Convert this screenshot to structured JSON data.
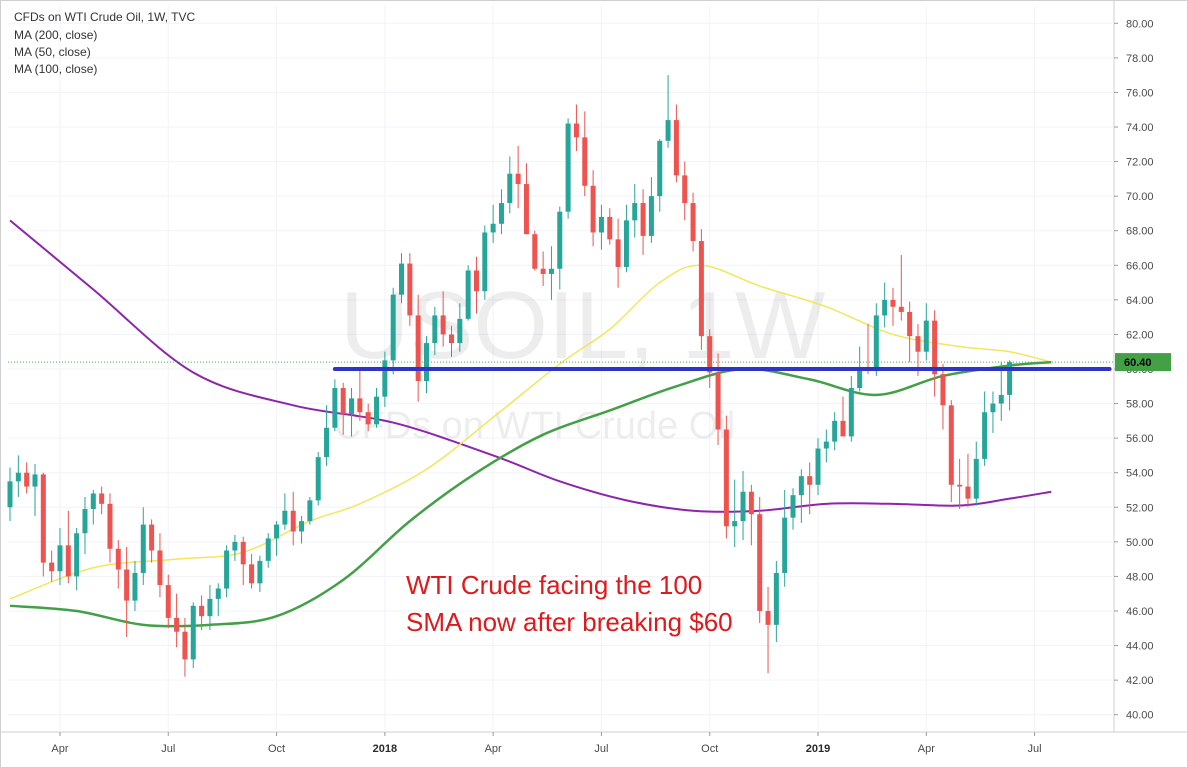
{
  "legend": {
    "symbol": "CFDs on WTI Crude Oil, 1W, TVC",
    "ma_200": "MA (200, close)",
    "ma_50": "MA (50, close)",
    "ma_100": "MA (100, close)"
  },
  "watermark": {
    "ticker": "USOIL, 1W",
    "description": "CFDs on WTI Crude Oil"
  },
  "annotation": {
    "line1": "WTI Crude facing the 100",
    "line2": "SMA now after breaking $60"
  },
  "price_tag": "60.40",
  "colors": {
    "up": "#26a69a",
    "down": "#ef5350",
    "ma_200": "#8e24aa",
    "ma_50": "#f3e65a",
    "ma_100": "#43a047",
    "level_line": "#2e35c6",
    "annotation": "#e0191c"
  },
  "chart_data": {
    "type": "candlestick",
    "title": "CFDs on WTI Crude Oil, 1W, TVC",
    "interval": "1W",
    "ylim": [
      39,
      81
    ],
    "y_ticks": [
      "40.00",
      "42.00",
      "44.00",
      "46.00",
      "48.00",
      "50.00",
      "52.00",
      "54.00",
      "56.00",
      "58.00",
      "60.00",
      "62.00",
      "64.00",
      "66.00",
      "68.00",
      "70.00",
      "72.00",
      "74.00",
      "76.00",
      "78.00",
      "80.00"
    ],
    "x_tick_labels": [
      {
        "label": "Apr",
        "week": 6,
        "bold": false
      },
      {
        "label": "Jul",
        "week": 19,
        "bold": false
      },
      {
        "label": "Oct",
        "week": 32,
        "bold": false
      },
      {
        "label": "2018",
        "week": 45,
        "bold": true
      },
      {
        "label": "Apr",
        "week": 58,
        "bold": false
      },
      {
        "label": "Jul",
        "week": 71,
        "bold": false
      },
      {
        "label": "Oct",
        "week": 84,
        "bold": false
      },
      {
        "label": "2019",
        "week": 97,
        "bold": true
      },
      {
        "label": "Apr",
        "week": 110,
        "bold": false
      },
      {
        "label": "Jul",
        "week": 123,
        "bold": false
      }
    ],
    "candles": [
      [
        52.0,
        54.3,
        51.2,
        53.5
      ],
      [
        53.5,
        55.0,
        52.6,
        54.0
      ],
      [
        54.0,
        54.6,
        52.8,
        53.2
      ],
      [
        53.2,
        54.5,
        51.5,
        53.9
      ],
      [
        53.9,
        54.0,
        48.0,
        48.8
      ],
      [
        48.8,
        49.5,
        47.7,
        48.3
      ],
      [
        48.3,
        50.8,
        47.5,
        49.8
      ],
      [
        49.8,
        51.8,
        47.6,
        48.0
      ],
      [
        48.0,
        50.8,
        47.2,
        50.5
      ],
      [
        50.5,
        52.6,
        49.3,
        51.9
      ],
      [
        51.9,
        53.0,
        51.0,
        52.8
      ],
      [
        52.8,
        53.2,
        51.6,
        52.2
      ],
      [
        52.2,
        52.8,
        48.8,
        49.6
      ],
      [
        49.6,
        50.1,
        47.3,
        48.4
      ],
      [
        48.4,
        49.7,
        44.5,
        46.6
      ],
      [
        46.6,
        48.9,
        46.0,
        48.2
      ],
      [
        48.2,
        52.0,
        47.5,
        51.0
      ],
      [
        51.0,
        51.3,
        48.8,
        49.5
      ],
      [
        49.5,
        50.5,
        46.8,
        47.5
      ],
      [
        47.5,
        48.1,
        45.0,
        45.6
      ],
      [
        45.6,
        47.0,
        43.9,
        44.8
      ],
      [
        44.8,
        45.6,
        42.2,
        43.2
      ],
      [
        43.2,
        46.5,
        42.7,
        46.3
      ],
      [
        46.3,
        46.9,
        44.9,
        45.7
      ],
      [
        45.7,
        47.5,
        44.9,
        46.7
      ],
      [
        46.7,
        47.6,
        45.7,
        47.3
      ],
      [
        47.3,
        49.8,
        46.8,
        49.5
      ],
      [
        49.5,
        50.4,
        48.9,
        50.0
      ],
      [
        50.0,
        50.3,
        47.5,
        48.7
      ],
      [
        48.7,
        49.3,
        47.3,
        47.6
      ],
      [
        47.6,
        49.2,
        47.1,
        48.9
      ],
      [
        48.9,
        50.5,
        48.5,
        50.2
      ],
      [
        50.2,
        51.2,
        49.2,
        51.0
      ],
      [
        51.0,
        52.8,
        50.7,
        51.8
      ],
      [
        51.8,
        52.9,
        49.8,
        50.6
      ],
      [
        50.6,
        51.5,
        49.9,
        51.2
      ],
      [
        51.2,
        52.6,
        51.0,
        52.4
      ],
      [
        52.4,
        55.2,
        52.1,
        54.9
      ],
      [
        54.9,
        57.9,
        54.4,
        56.6
      ],
      [
        56.6,
        59.4,
        56.4,
        58.9
      ],
      [
        58.9,
        59.2,
        56.2,
        57.4
      ],
      [
        57.4,
        58.9,
        56.1,
        58.3
      ],
      [
        58.3,
        59.9,
        57.0,
        57.5
      ],
      [
        57.5,
        58.0,
        56.4,
        56.8
      ],
      [
        56.8,
        58.9,
        56.6,
        58.4
      ],
      [
        58.4,
        61.0,
        57.8,
        60.5
      ],
      [
        60.5,
        64.7,
        59.7,
        64.3
      ],
      [
        64.3,
        66.7,
        63.8,
        66.1
      ],
      [
        66.1,
        66.7,
        62.5,
        63.1
      ],
      [
        63.1,
        64.3,
        58.1,
        59.3
      ],
      [
        59.3,
        61.9,
        58.6,
        61.5
      ],
      [
        61.5,
        63.6,
        60.8,
        63.1
      ],
      [
        63.1,
        64.5,
        61.3,
        62.0
      ],
      [
        62.0,
        62.5,
        60.7,
        61.5
      ],
      [
        61.5,
        63.8,
        61.0,
        62.9
      ],
      [
        62.9,
        66.0,
        62.8,
        65.7
      ],
      [
        65.7,
        66.5,
        63.2,
        64.5
      ],
      [
        64.5,
        68.3,
        64.0,
        67.9
      ],
      [
        67.9,
        69.5,
        67.3,
        68.4
      ],
      [
        68.4,
        70.4,
        67.8,
        69.6
      ],
      [
        69.6,
        72.3,
        69.0,
        71.3
      ],
      [
        71.3,
        72.9,
        69.3,
        70.7
      ],
      [
        70.7,
        71.9,
        67.8,
        67.8
      ],
      [
        67.8,
        68.0,
        65.7,
        65.8
      ],
      [
        65.8,
        66.8,
        64.8,
        65.5
      ],
      [
        65.5,
        67.1,
        64.0,
        65.8
      ],
      [
        65.8,
        69.4,
        64.6,
        69.1
      ],
      [
        69.1,
        74.5,
        68.7,
        74.2
      ],
      [
        74.2,
        75.3,
        72.6,
        73.4
      ],
      [
        73.4,
        74.9,
        70.0,
        70.6
      ],
      [
        70.6,
        71.5,
        67.1,
        67.9
      ],
      [
        67.9,
        69.5,
        66.9,
        68.8
      ],
      [
        68.8,
        69.3,
        67.2,
        67.5
      ],
      [
        67.5,
        68.7,
        64.7,
        65.9
      ],
      [
        65.9,
        69.5,
        65.6,
        68.6
      ],
      [
        68.6,
        70.7,
        67.6,
        69.6
      ],
      [
        69.6,
        70.4,
        66.6,
        67.7
      ],
      [
        67.7,
        71.1,
        67.3,
        70.0
      ],
      [
        70.0,
        73.3,
        69.1,
        73.2
      ],
      [
        73.2,
        77.0,
        72.8,
        74.4
      ],
      [
        74.4,
        75.3,
        70.8,
        71.2
      ],
      [
        71.2,
        72.0,
        68.6,
        69.6
      ],
      [
        69.6,
        70.2,
        66.8,
        67.4
      ],
      [
        67.4,
        68.1,
        61.1,
        61.9
      ],
      [
        61.9,
        62.3,
        58.9,
        59.8
      ],
      [
        59.8,
        60.9,
        55.6,
        56.5
      ],
      [
        56.5,
        57.3,
        50.2,
        50.9
      ],
      [
        50.9,
        53.6,
        49.7,
        51.2
      ],
      [
        51.2,
        54.1,
        50.1,
        52.9
      ],
      [
        52.9,
        53.3,
        49.8,
        51.6
      ],
      [
        51.6,
        52.6,
        45.3,
        46.0
      ],
      [
        46.0,
        47.4,
        42.4,
        45.2
      ],
      [
        45.2,
        48.9,
        44.2,
        48.2
      ],
      [
        48.2,
        53.0,
        47.4,
        51.4
      ],
      [
        51.4,
        53.1,
        50.7,
        52.7
      ],
      [
        52.7,
        54.2,
        51.1,
        53.8
      ],
      [
        53.8,
        54.6,
        51.6,
        53.3
      ],
      [
        53.3,
        56.0,
        52.7,
        55.4
      ],
      [
        55.4,
        56.5,
        54.6,
        55.8
      ],
      [
        55.8,
        57.5,
        55.3,
        57.0
      ],
      [
        57.0,
        58.4,
        56.1,
        56.1
      ],
      [
        56.1,
        59.6,
        55.8,
        58.9
      ],
      [
        58.9,
        61.3,
        58.7,
        60.1
      ],
      [
        60.1,
        62.6,
        59.7,
        60.0
      ],
      [
        60.0,
        63.8,
        59.6,
        63.1
      ],
      [
        63.1,
        65.0,
        62.4,
        64.0
      ],
      [
        64.0,
        64.7,
        62.5,
        63.6
      ],
      [
        63.6,
        66.6,
        62.8,
        63.3
      ],
      [
        63.3,
        63.9,
        60.4,
        61.9
      ],
      [
        61.9,
        62.6,
        59.6,
        61.0
      ],
      [
        61.0,
        63.8,
        60.5,
        62.8
      ],
      [
        62.8,
        63.4,
        58.4,
        59.7
      ],
      [
        59.7,
        60.3,
        56.5,
        57.9
      ],
      [
        57.9,
        58.2,
        52.3,
        53.3
      ],
      [
        53.3,
        54.8,
        51.9,
        53.2
      ],
      [
        53.2,
        55.1,
        52.0,
        52.5
      ],
      [
        52.5,
        55.8,
        52.1,
        54.8
      ],
      [
        54.8,
        58.7,
        54.4,
        57.5
      ],
      [
        57.5,
        58.7,
        56.3,
        58.0
      ],
      [
        58.0,
        60.4,
        57.0,
        58.5
      ],
      [
        58.5,
        60.5,
        57.6,
        60.4
      ]
    ],
    "series": [
      {
        "name": "MA (200, close)",
        "color": "#8e24aa",
        "points": [
          [
            0,
            68.6
          ],
          [
            10,
            64.6
          ],
          [
            22,
            59.8
          ],
          [
            34,
            57.9
          ],
          [
            46,
            56.9
          ],
          [
            58,
            55.0
          ],
          [
            66,
            53.5
          ],
          [
            74,
            52.4
          ],
          [
            82,
            51.8
          ],
          [
            90,
            51.8
          ],
          [
            98,
            52.2
          ],
          [
            106,
            52.2
          ],
          [
            114,
            52.1
          ],
          [
            120,
            52.5
          ],
          [
            125,
            52.9
          ]
        ]
      },
      {
        "name": "MA (50, close)",
        "color": "#f3e65a",
        "points": [
          [
            0,
            46.7
          ],
          [
            10,
            48.5
          ],
          [
            20,
            49.0
          ],
          [
            28,
            49.4
          ],
          [
            36,
            51.2
          ],
          [
            42,
            52.2
          ],
          [
            50,
            54.2
          ],
          [
            58,
            57.2
          ],
          [
            66,
            60.3
          ],
          [
            72,
            62.3
          ],
          [
            78,
            65.0
          ],
          [
            83,
            66.0
          ],
          [
            90,
            64.8
          ],
          [
            98,
            63.6
          ],
          [
            106,
            62.0
          ],
          [
            114,
            61.3
          ],
          [
            120,
            61.0
          ],
          [
            125,
            60.4
          ]
        ]
      },
      {
        "name": "MA (100, close)",
        "color": "#43a047",
        "points": [
          [
            0,
            46.3
          ],
          [
            8,
            46.0
          ],
          [
            16,
            45.2
          ],
          [
            24,
            45.2
          ],
          [
            32,
            45.7
          ],
          [
            40,
            47.8
          ],
          [
            48,
            51.2
          ],
          [
            56,
            54.0
          ],
          [
            64,
            56.2
          ],
          [
            72,
            57.6
          ],
          [
            80,
            59.0
          ],
          [
            88,
            60.0
          ],
          [
            96,
            59.4
          ],
          [
            104,
            58.5
          ],
          [
            112,
            59.6
          ],
          [
            120,
            60.2
          ],
          [
            125,
            60.4
          ]
        ]
      }
    ],
    "horizontal_levels": [
      {
        "value": 60.0,
        "week_start": 39,
        "week_end": 132
      },
      {
        "value": 60.4,
        "style": "dotted"
      }
    ]
  }
}
